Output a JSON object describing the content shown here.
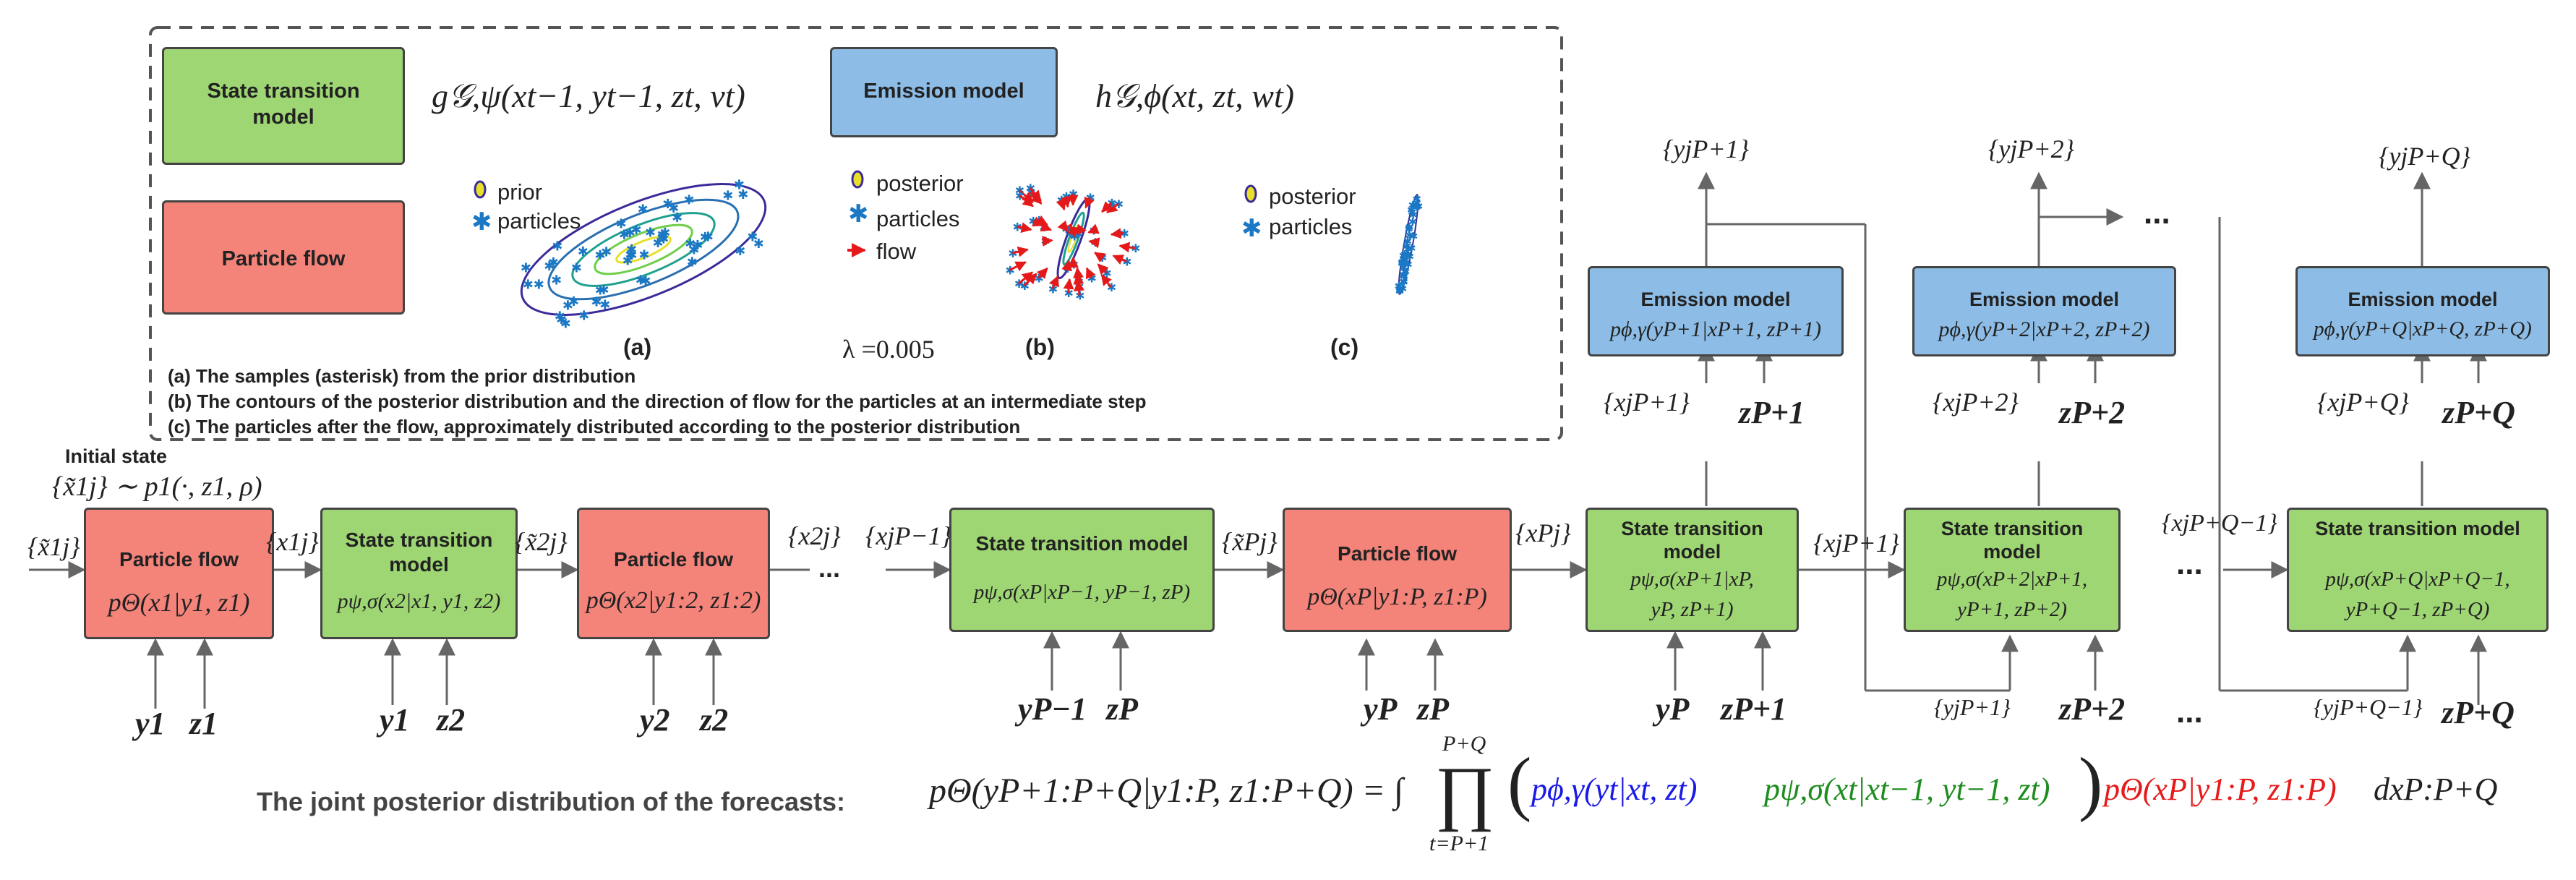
{
  "legend_box": {
    "state_transition_label": "State transition model",
    "state_transition_formula": "g𝒢,ψ(xt−1, yt−1, zt, vt)",
    "emission_label": "Emission model",
    "emission_formula": "h𝒢,ϕ(xt, zt, wt)",
    "particle_flow_label": "Particle flow",
    "panel_a": {
      "legend": [
        "prior",
        "particles"
      ],
      "label": "(a)"
    },
    "panel_b": {
      "legend": [
        "posterior",
        "particles",
        "flow"
      ],
      "label": "(b)",
      "lambda": "λ =0.005"
    },
    "panel_c": {
      "legend": [
        "posterior",
        "particles"
      ],
      "label": "(c)"
    },
    "captions": [
      "(a) The samples (asterisk) from the prior distribution",
      "(b) The contours of the posterior distribution and the direction of flow for the particles at an intermediate step",
      "(c) The particles after the flow,  approximately distributed according to the posterior distribution"
    ]
  },
  "initial_state": {
    "label": "Initial state",
    "formula": "{x̃1j} ∼ p1(·, z1, ρ)"
  },
  "chain": [
    {
      "type": "flow",
      "title": "Particle flow",
      "formula": "pΘ(x1|y1, z1)",
      "in_label": "{x̃1j}",
      "out_label": "{x1j}",
      "inputs": [
        "y1",
        "z1"
      ]
    },
    {
      "type": "transition",
      "title": "State transition model",
      "formula": "pψ,σ(x2|x1, y1, z2)",
      "out_label": "{x̃2j}",
      "inputs": [
        "y1",
        "z2"
      ]
    },
    {
      "type": "flow",
      "title": "Particle flow",
      "formula": "pΘ(x2|y1:2, z1:2)",
      "out_label": "{x2j}",
      "inputs": [
        "y2",
        "z2"
      ]
    },
    {
      "type": "transition",
      "title": "State transition model",
      "formula": "pψ,σ(xP|xP−1, yP−1, zP)",
      "in_label": "{xjP−1}",
      "out_label": "{x̃Pj}",
      "inputs": [
        "yP−1",
        "zP"
      ]
    },
    {
      "type": "flow",
      "title": "Particle flow",
      "formula": "pΘ(xP|y1:P, z1:P)",
      "out_label": "{xPj}",
      "inputs": [
        "yP",
        "zP"
      ]
    }
  ],
  "forecast": [
    {
      "transition_title": "State transition model",
      "transition_formula_1": "pψ,σ(xP+1|xP,",
      "transition_formula_2": "yP, zP+1)",
      "inputs": [
        "yP",
        "zP+1"
      ],
      "x_label": "{xjP+1}",
      "z_label": "zP+1",
      "emission_title": "Emission model",
      "emission_formula": "pϕ,γ(yP+1|xP+1, zP+1)",
      "y_label": "{yjP+1}"
    },
    {
      "transition_title": "State transition model",
      "transition_formula_1": "pψ,σ(xP+2|xP+1,",
      "transition_formula_2": "yP+1, zP+2)",
      "inputs": [
        "{yjP+1}",
        "zP+2"
      ],
      "x_label": "{xjP+2}",
      "z_label": "zP+2",
      "emission_title": "Emission model",
      "emission_formula": "pϕ,γ(yP+2|xP+2, zP+2)",
      "y_label": "{yjP+2}"
    },
    {
      "transition_title": "State transition model",
      "transition_formula_1": "pψ,σ(xP+Q|xP+Q−1,",
      "transition_formula_2": "yP+Q−1, zP+Q)",
      "inputs": [
        "{yjP+Q−1}",
        "zP+Q"
      ],
      "x_label": "{xjP+Q}",
      "z_label": "zP+Q",
      "emission_title": "Emission model",
      "emission_formula": "pϕ,γ(yP+Q|xP+Q, zP+Q)",
      "y_label": "{yjP+Q}"
    }
  ],
  "between_labels": {
    "x_p_plus_1": "{xjP+1}",
    "x_p_plus_q_minus_1": "{xjP+Q−1}",
    "ellipsis": "...",
    "ellipsis_bold": "..."
  },
  "bottom": {
    "caption": "The joint posterior distribution of the forecasts:",
    "lhs": "pΘ(yP+1:P+Q|y1:P, z1:P+Q) = ∫",
    "prod_upper": "P+Q",
    "prod_lower": "t=P+1",
    "term_blue": "pϕ,γ(yt|xt, zt)",
    "term_green": "pψ,σ(xt|xt−1, yt−1, zt)",
    "term_red": "pΘ(xP|y1:P, z1:P)",
    "tail": "dxP:P+Q"
  },
  "colors": {
    "green": "#9ed673",
    "red": "#f4837a",
    "blue": "#8dbde6",
    "math_blue": "#1a1ae6",
    "math_green": "#1e8c1e",
    "math_red": "#e61a1a"
  }
}
